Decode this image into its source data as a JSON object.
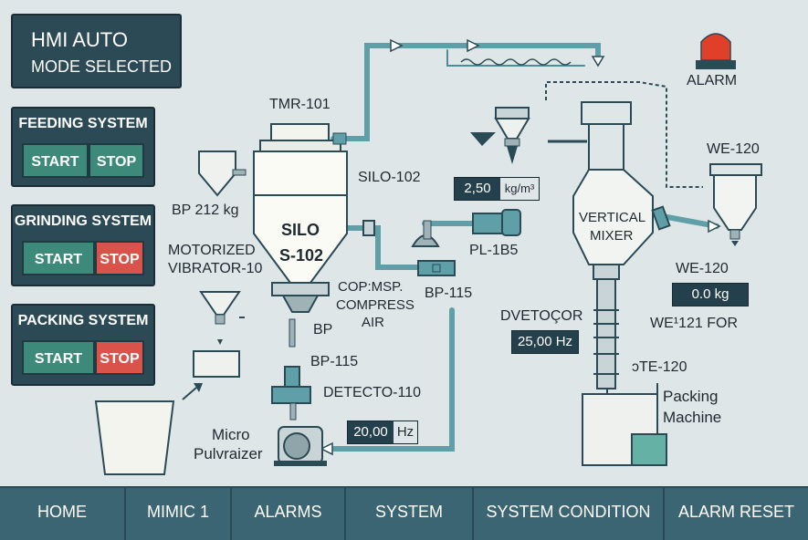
{
  "mode_banner": {
    "line1": "HMI AUTO",
    "line2": "MODE SELECTED"
  },
  "control_panels": [
    {
      "title": "FEEDING SYSTEM",
      "start_label": "START",
      "stop_label": "STOP",
      "stop_active": false
    },
    {
      "title": "GRINDING SYSTEM",
      "start_label": "START",
      "stop_label": "STOP",
      "stop_active": true
    },
    {
      "title": "PACKING SYSTEM",
      "start_label": "START",
      "stop_label": "STOP",
      "stop_active": true
    }
  ],
  "alarm": {
    "label": "ALARM",
    "icon": "beacon-icon"
  },
  "labels": {
    "tmr": "TMR-101",
    "silo102": "SILO-102",
    "bp212": "BP 212 kg",
    "silo_line1": "SILO",
    "silo_line2": "S-102",
    "motorized1": "MOTORIZED",
    "motorized2": "VIBRATOR-10",
    "compress1": "COP:MSP.",
    "compress2": "COMPRESS",
    "compress3": "AIR",
    "bp115_right": "BP-115",
    "pl1b5": "PL-1B5",
    "bp": "BP",
    "bp115_lower": "BP-115",
    "detecto": "DETECTO-110",
    "micro1": "Micro",
    "micro2": "Pulvraizer",
    "vertical1": "VERTICAL",
    "vertical2": "MIXER",
    "we120_top": "WE-120",
    "we120_mid": "WE-120",
    "we121": "WE¹121 FOR",
    "dvetocor": "DVETOÇOR",
    "te120": "ͻTE-120",
    "packing1": "Packing",
    "packing2": "Machine"
  },
  "readouts": {
    "density_value": "2,50",
    "density_unit": "kg/m³",
    "we_value": "0.0  kg",
    "dvetocor_value": "25,00 Hz",
    "pulverizer_value": "20,00",
    "pulverizer_unit": "Hz"
  },
  "nav": [
    "HOME",
    "MIMIC 1",
    "ALARMS",
    "SYSTEM",
    "SYSTEM CONDITION",
    "ALARM RESET"
  ],
  "colors": {
    "panel": "#2c4a56",
    "start": "#3e8a7a",
    "stop_active": "#d9534a",
    "pipe": "#5fa0a8",
    "alarm": "#e0402a"
  }
}
